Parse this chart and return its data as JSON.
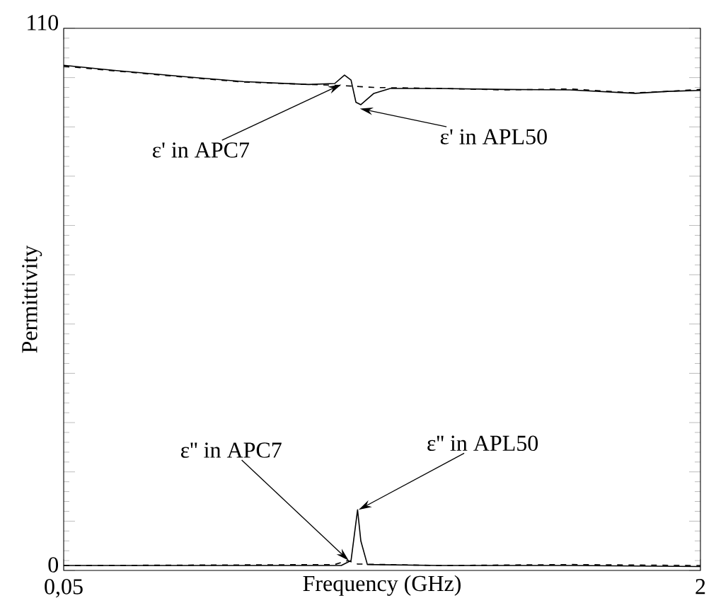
{
  "chart_data": {
    "type": "line",
    "xlabel": "Frequency (GHz)",
    "ylabel": "Permittivity",
    "xlim": [
      0.05,
      2
    ],
    "ylim": [
      0,
      110
    ],
    "xticks": [
      {
        "value": 0.05,
        "label": "0,05"
      },
      2
    ],
    "yticks": [
      0,
      {
        "value": 10,
        "label": null
      },
      {
        "value": 20,
        "label": null
      },
      {
        "value": 30,
        "label": null
      },
      {
        "value": 40,
        "label": null
      },
      {
        "value": 50,
        "label": null
      },
      {
        "value": 60,
        "label": null
      },
      {
        "value": 70,
        "label": null
      },
      {
        "value": 80,
        "label": null
      },
      {
        "value": 90,
        "label": null
      },
      {
        "value": 100,
        "label": null
      },
      110
    ],
    "grid": false,
    "series": [
      {
        "color": "#000000",
        "line_style": "dashed",
        "x": [
          0.05,
          0.2,
          0.4,
          0.6,
          0.8,
          0.9,
          1.0,
          1.2,
          1.4,
          1.6,
          1.8,
          1.9,
          2
        ],
        "values": [
          102.3,
          101.4,
          100.2,
          99.1,
          98.6,
          98.4,
          98.0,
          97.8,
          97.5,
          97.7,
          96.9,
          97.2,
          97.6
        ]
      },
      {
        "color": "#000000",
        "line_style": "solid",
        "x": [
          0.05,
          0.2,
          0.4,
          0.6,
          0.8,
          0.88,
          0.91,
          0.93,
          0.945,
          0.96,
          1.0,
          1.05,
          1.2,
          1.4,
          1.6,
          1.8,
          1.9,
          2
        ],
        "values": [
          102.5,
          101.5,
          100.3,
          99.2,
          98.6,
          98.8,
          100.5,
          99.5,
          95,
          94.5,
          96.8,
          97.8,
          97.8,
          97.6,
          97.5,
          96.8,
          97.2,
          97.4
        ]
      },
      {
        "color": "#000000",
        "line_style": "dashed",
        "x": [
          0.05,
          0.5,
          0.88,
          0.92,
          0.95,
          1.2,
          1.6,
          2
        ],
        "values": [
          1,
          1.1,
          1.2,
          2,
          1.3,
          1,
          1.2,
          1
        ]
      },
      {
        "color": "#000000",
        "line_style": "solid",
        "x": [
          0.05,
          0.5,
          0.9,
          0.93,
          0.95,
          0.96,
          0.98,
          1.2,
          1.6,
          2
        ],
        "values": [
          1,
          1,
          1,
          2,
          12.3,
          6,
          1.2,
          1,
          1,
          0.8
        ]
      }
    ],
    "annotations": [
      {
        "text": "ε' in APC7",
        "x": 0.9,
        "y": 98.6
      },
      {
        "text": "ε' in APL50",
        "x": 0.957,
        "y": 93.7
      },
      {
        "text": "ε'' in APC7",
        "x": 0.923,
        "y": 2
      },
      {
        "text": "ε'' in APL50",
        "x": 0.953,
        "y": 12.3
      }
    ]
  }
}
